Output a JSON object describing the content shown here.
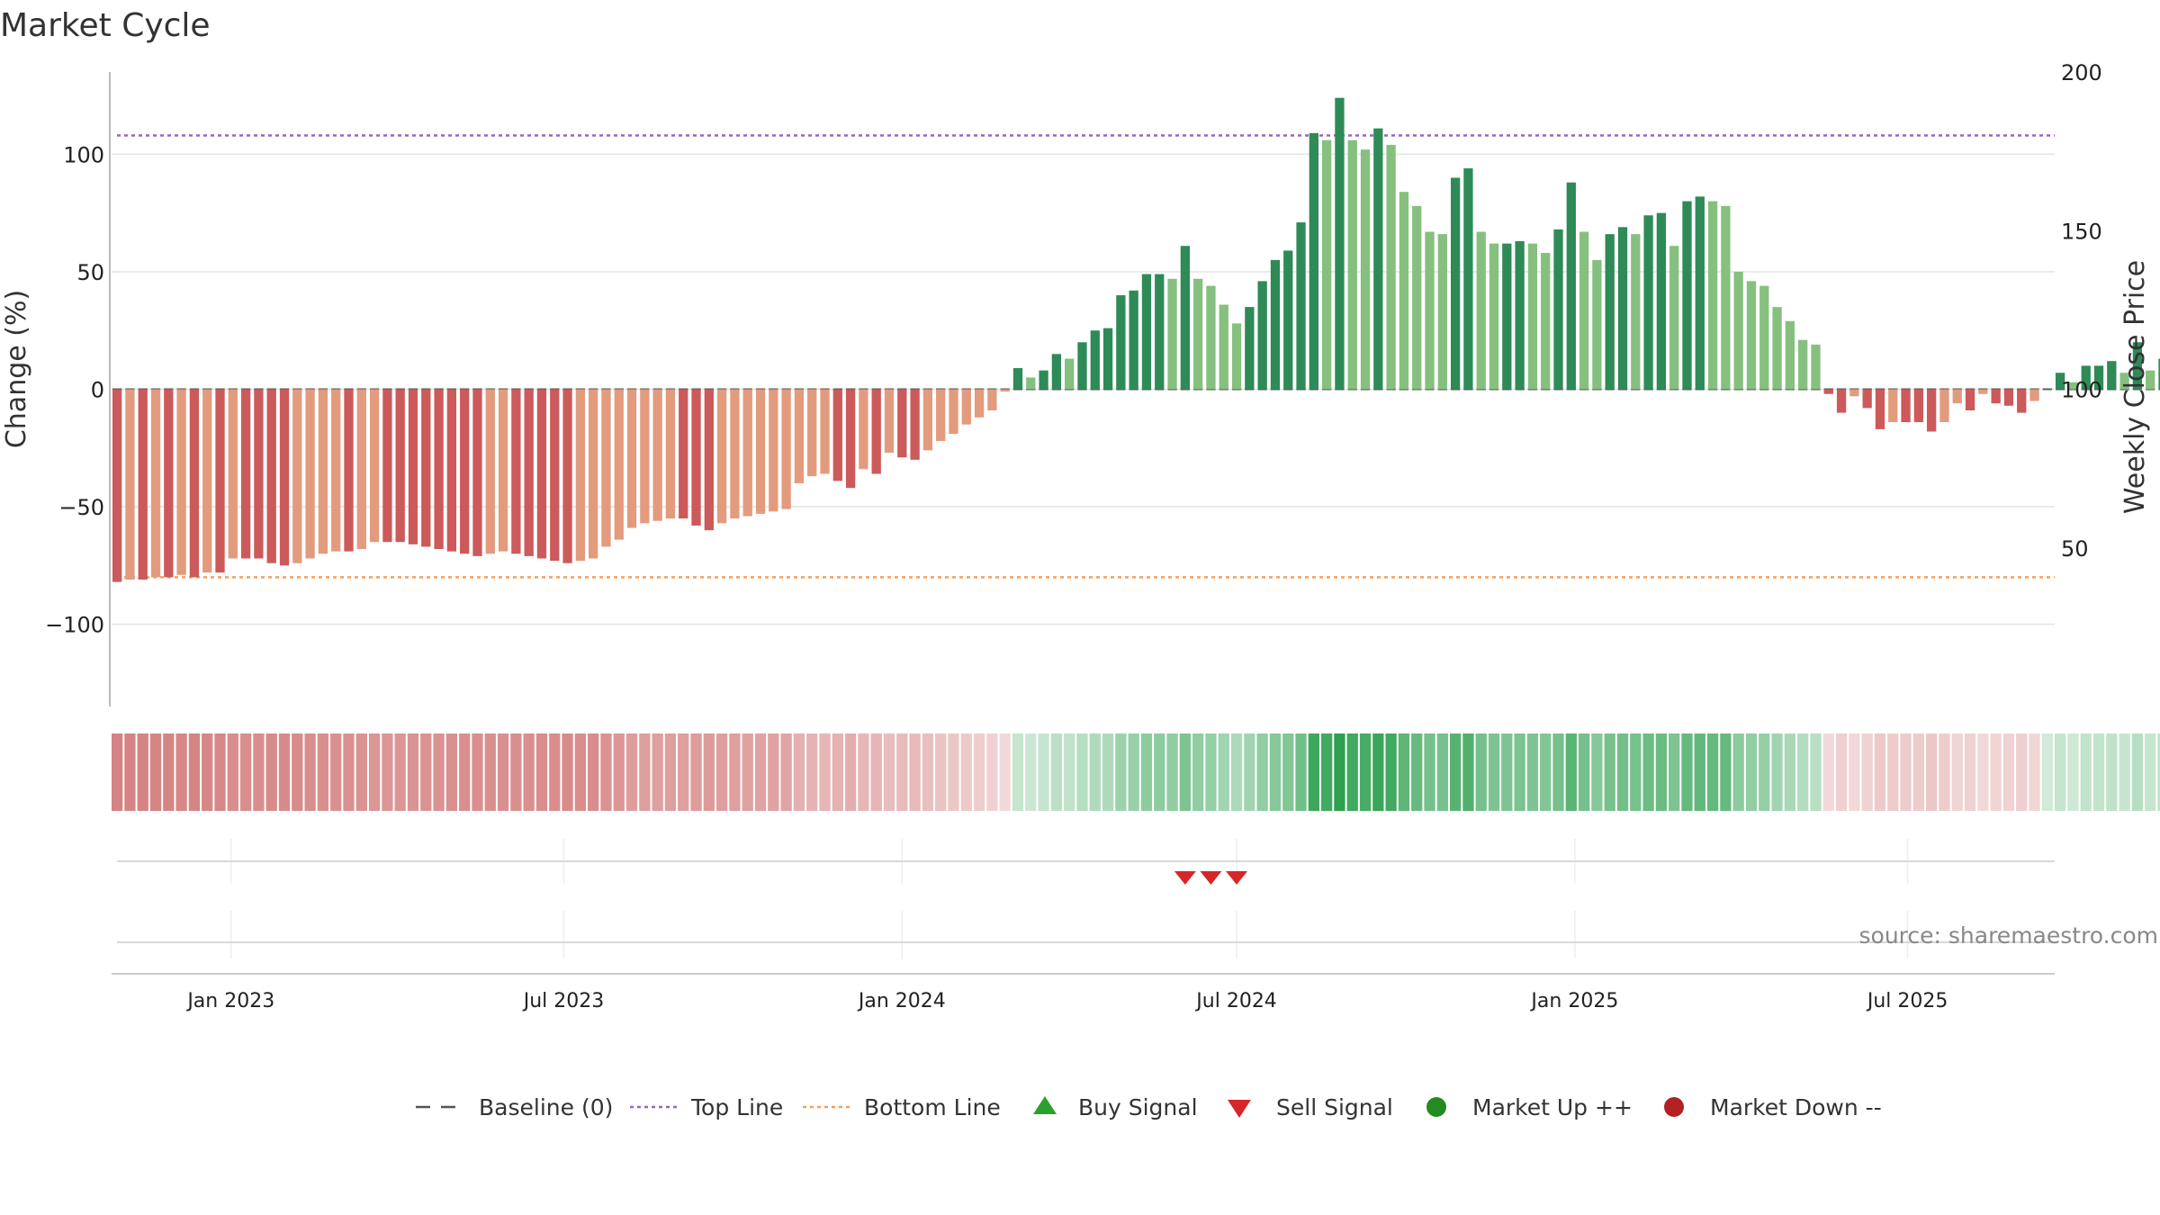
{
  "chart_data": {
    "type": "bar",
    "title": "Market Cycle",
    "ylabel": "Change (%)",
    "y2label": "Weekly Close Price",
    "ylim": [
      -135,
      135
    ],
    "y2lim": [
      0,
      200
    ],
    "yticks": [
      100,
      50,
      0,
      -50,
      -100
    ],
    "y2ticks": [
      200,
      150,
      100,
      50
    ],
    "x_range": [
      "2022-10-28",
      "2025-09-19"
    ],
    "x_ticks": [
      {
        "date": "2023-01-01",
        "label": "Jan 2023"
      },
      {
        "date": "2023-07-01",
        "label": "Jul 2023"
      },
      {
        "date": "2024-01-01",
        "label": "Jan 2024"
      },
      {
        "date": "2024-07-01",
        "label": "Jul 2024"
      },
      {
        "date": "2025-01-01",
        "label": "Jan 2025"
      },
      {
        "date": "2025-07-01",
        "label": "Jul 2025"
      }
    ],
    "start_week": "2022-10-31",
    "top_line": 108,
    "bottom_line": -80,
    "values": [
      -82,
      -81,
      -81,
      -80,
      -80,
      -79,
      -80,
      -78,
      -78,
      -72,
      -72,
      -72,
      -74,
      -75,
      -74,
      -72,
      -70,
      -69,
      -69,
      -68,
      -65,
      -65,
      -65,
      -66,
      -67,
      -68,
      -69,
      -70,
      -71,
      -70,
      -69,
      -70,
      -71,
      -72,
      -73,
      -74,
      -73,
      -72,
      -67,
      -64,
      -59,
      -57,
      -56,
      -55,
      -55,
      -58,
      -60,
      -57,
      -55,
      -54,
      -53,
      -52,
      -51,
      -40,
      -37,
      -36,
      -39,
      -42,
      -34,
      -36,
      -27,
      -29,
      -30,
      -26,
      -22,
      -19,
      -15,
      -12,
      -9,
      -1,
      9,
      5,
      8,
      15,
      13,
      20,
      25,
      26,
      40,
      42,
      49,
      49,
      47,
      61,
      47,
      44,
      36,
      28,
      35,
      46,
      55,
      59,
      71,
      109,
      106,
      124,
      106,
      102,
      111,
      104,
      84,
      78,
      67,
      66,
      90,
      94,
      67,
      62,
      62,
      63,
      62,
      58,
      68,
      88,
      67,
      55,
      66,
      69,
      66,
      74,
      75,
      61,
      80,
      82,
      80,
      78,
      50,
      46,
      44,
      35,
      29,
      21,
      19,
      -2,
      -10,
      -3,
      -8,
      -17,
      -14,
      -14,
      -14,
      -18,
      -14,
      -6,
      -9,
      -2,
      -6,
      -7,
      -10,
      -5,
      0,
      7,
      3,
      10,
      10,
      12,
      7,
      20,
      8,
      13,
      10,
      12,
      2,
      6
    ],
    "colors": {
      "down_strong": "#cc5a5a",
      "down_light": "#e39b7e",
      "up_strong": "#2e8b57",
      "up_light": "#86c07f",
      "top_line": "#9467bd",
      "bottom_line": "#f0a060",
      "baseline": "#555555",
      "sell_signal": "#d62728",
      "buy_signal": "#2ca02c",
      "market_up": "#228b22",
      "market_down": "#b22222"
    },
    "sell_signals": [
      "2024-06-03",
      "2024-06-17",
      "2024-07-01"
    ],
    "buy_signals": [],
    "legend": {
      "placement": "bottom-center",
      "items": [
        {
          "label": "Baseline (0)",
          "marker": "dash-line"
        },
        {
          "label": "Top Line",
          "marker": "dotted-purple"
        },
        {
          "label": "Bottom Line",
          "marker": "dotted-orange"
        },
        {
          "label": "Buy Signal",
          "marker": "triangle-up-green"
        },
        {
          "label": "Sell Signal",
          "marker": "triangle-down-red"
        },
        {
          "label": "Market Up ++",
          "marker": "circle-green"
        },
        {
          "label": "Market Down --",
          "marker": "circle-red"
        }
      ]
    },
    "source": "source: sharemaestro.com"
  }
}
